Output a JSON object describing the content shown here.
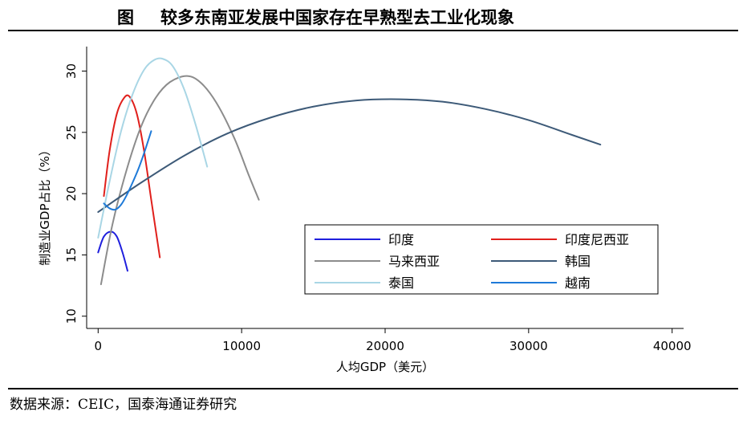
{
  "figure": {
    "label": "图",
    "title": "较多东南亚发展中国家存在早熟型去工业化现象",
    "source": "数据来源：CEIC，国泰海通证券研究"
  },
  "chart_data": {
    "type": "line",
    "xlabel": "人均GDP（美元）",
    "ylabel": "制造业GDP占比（%）",
    "xlim": [
      -800,
      40800
    ],
    "ylim": [
      9,
      32
    ],
    "xticks": [
      0,
      10000,
      20000,
      30000,
      40000
    ],
    "yticks": [
      10,
      15,
      20,
      25,
      30
    ],
    "grid": false,
    "legend": "center-right",
    "series": [
      {
        "name": "印度",
        "color": "#1f1fdd",
        "x": [
          0,
          400,
          900,
          1300,
          1700,
          2050
        ],
        "y": [
          15.2,
          16.5,
          16.9,
          16.5,
          15.2,
          13.7
        ]
      },
      {
        "name": "印度尼西亚",
        "color": "#e0201c",
        "x": [
          400,
          800,
          1300,
          1800,
          2200,
          2700,
          3200,
          3700,
          4300
        ],
        "y": [
          19.8,
          23.5,
          26.5,
          27.8,
          27.9,
          26.5,
          23.5,
          19.5,
          14.8
        ]
      },
      {
        "name": "马来西亚",
        "color": "#8c8c8c",
        "x": [
          200,
          1000,
          2000,
          3000,
          4000,
          5000,
          6200,
          7200,
          8300,
          9500,
          10500,
          11200
        ],
        "y": [
          12.6,
          17.5,
          22.0,
          25.5,
          27.8,
          29.1,
          29.6,
          29.0,
          27.3,
          24.5,
          21.5,
          19.5
        ]
      },
      {
        "name": "韩国",
        "color": "#3d5a78",
        "x": [
          0,
          3000,
          6000,
          9000,
          12000,
          15000,
          18000,
          21000,
          24000,
          27000,
          30000,
          33000,
          35000
        ],
        "y": [
          18.5,
          20.9,
          23.1,
          24.9,
          26.2,
          27.1,
          27.6,
          27.7,
          27.5,
          26.9,
          26.0,
          24.8,
          24.0
        ]
      },
      {
        "name": "泰国",
        "color": "#a9d6e5",
        "x": [
          0,
          800,
          1600,
          2400,
          3200,
          3900,
          4500,
          5200,
          6000,
          6800,
          7600
        ],
        "y": [
          16.4,
          21.0,
          25.1,
          28.1,
          30.1,
          30.9,
          31.0,
          30.4,
          28.5,
          25.6,
          22.2
        ]
      },
      {
        "name": "越南",
        "color": "#1e7ad8",
        "x": [
          400,
          800,
          1200,
          1600,
          2000,
          2400,
          2800,
          3200,
          3700
        ],
        "y": [
          19.2,
          18.8,
          18.7,
          19.1,
          19.9,
          20.9,
          22.0,
          23.3,
          25.1
        ]
      }
    ]
  }
}
